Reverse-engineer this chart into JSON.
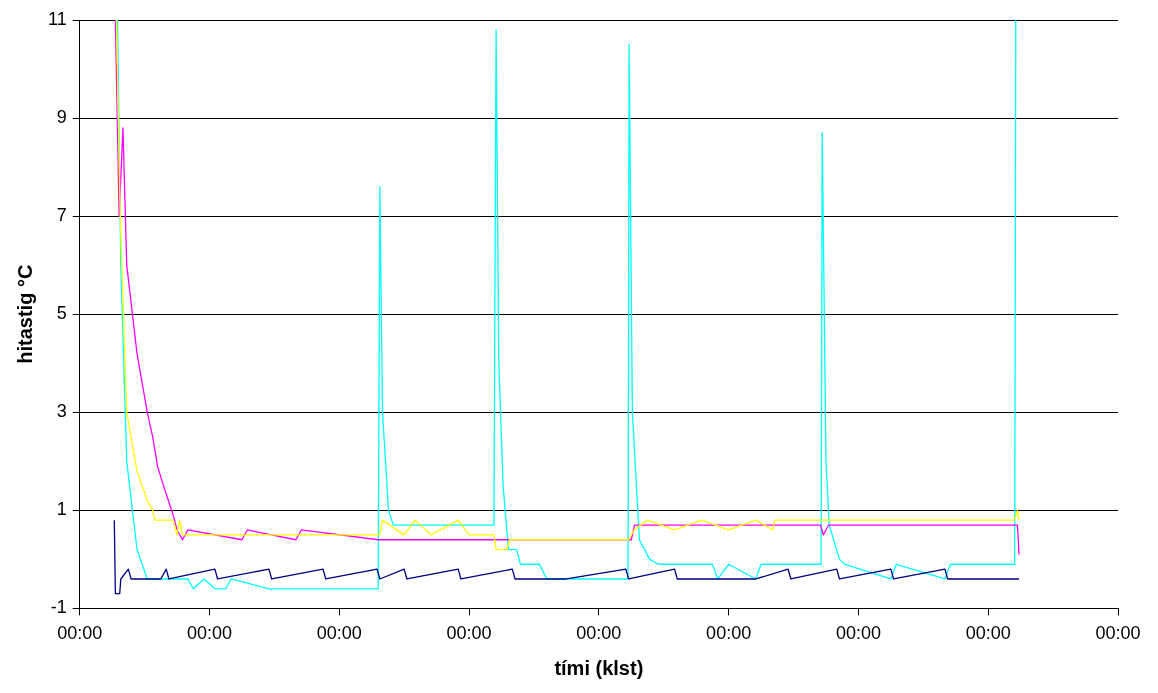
{
  "chart_data": {
    "type": "line",
    "xlabel": "tími (klst)",
    "ylabel": "hitastig °C",
    "xlim": [
      "--01-01T00:00",
      "--01-09T00:00"
    ],
    "xticks": [
      {
        "value": "--01-01T00:00",
        "label": "00:00"
      },
      {
        "value": "--01-02T00:00",
        "label": "00:00"
      },
      {
        "value": "--01-03T00:00",
        "label": "00:00"
      },
      {
        "value": "--01-04T00:00",
        "label": "00:00"
      },
      {
        "value": "--01-05T00:00",
        "label": "00:00"
      },
      {
        "value": "--01-06T00:00",
        "label": "00:00"
      },
      {
        "value": "--01-07T00:00",
        "label": "00:00"
      },
      {
        "value": "--01-08T00:00",
        "label": "00:00"
      },
      {
        "value": "--01-09T00:00",
        "label": "00:00"
      }
    ],
    "ylim": [
      -1,
      11
    ],
    "yticks": [
      -1,
      1,
      3,
      5,
      7,
      9,
      11
    ],
    "grid": "y",
    "legend": false,
    "marker": "none",
    "line_style": "solid",
    "series": [
      {
        "color": "#000080",
        "x": [
          "--01-01T06:24",
          "--01-01T06:36",
          "--01-01T07:24",
          "--01-01T07:36",
          "--01-01T09:00",
          "--01-01T09:30",
          "--01-01T15:00",
          "--01-01T16:00",
          "--01-01T16:30",
          "--01-02T01:00",
          "--01-02T01:30",
          "--01-02T11:00",
          "--01-02T11:30",
          "--01-02T21:00",
          "--01-02T21:30",
          "--01-03T07:00",
          "--01-03T07:30",
          "--01-03T12:00",
          "--01-03T12:30",
          "--01-03T22:00",
          "--01-03T22:30",
          "--01-04T08:00",
          "--01-04T08:30",
          "--01-04T18:00",
          "--01-05T05:00",
          "--01-05T05:30",
          "--01-05T14:00",
          "--01-05T14:30",
          "--01-06T05:00",
          "--01-06T11:00",
          "--01-06T11:30",
          "--01-06T20:00",
          "--01-06T20:30",
          "--01-07T06:00",
          "--01-07T06:30",
          "--01-07T16:00",
          "--01-07T16:30",
          "--01-08T05:42"
        ],
        "values": [
          0.8,
          -0.7,
          -0.7,
          -0.4,
          -0.2,
          -0.4,
          -0.4,
          -0.2,
          -0.4,
          -0.2,
          -0.4,
          -0.2,
          -0.4,
          -0.2,
          -0.4,
          -0.2,
          -0.4,
          -0.2,
          -0.4,
          -0.2,
          -0.4,
          -0.2,
          -0.4,
          -0.4,
          -0.2,
          -0.4,
          -0.2,
          -0.4,
          -0.4,
          -0.2,
          -0.4,
          -0.2,
          -0.4,
          -0.2,
          -0.4,
          -0.2,
          -0.4,
          -0.4
        ]
      },
      {
        "color": "#ffff00",
        "x": [
          "--01-01T06:48",
          "--01-01T07:30",
          "--01-01T08:42",
          "--01-01T10:36",
          "--01-01T12:30",
          "--01-01T13:30",
          "--01-01T13:54",
          "--01-01T17:18",
          "--01-01T18:00",
          "--01-01T18:30",
          "--01-01T19:00",
          "--01-01T20:00",
          "--01-03T07:30",
          "--01-03T08:00",
          "--01-03T12:00",
          "--01-03T14:00",
          "--01-03T17:00",
          "--01-03T22:00",
          "--01-04T00:00",
          "--01-04T04:36",
          "--01-04T05:00",
          "--01-04T07:00",
          "--01-04T07:30",
          "--01-05T05:30",
          "--01-05T06:30",
          "--01-05T09:00",
          "--01-05T14:00",
          "--01-05T19:00",
          "--01-06T00:00",
          "--01-06T05:00",
          "--01-06T08:12",
          "--01-06T08:30",
          "--01-08T04:54",
          "--01-08T05:24",
          "--01-08T05:42"
        ],
        "values": [
          11,
          7,
          3,
          1.8,
          1.2,
          1,
          0.8,
          0.8,
          0.5,
          0.8,
          0.5,
          0.5,
          0.5,
          0.8,
          0.5,
          0.8,
          0.5,
          0.8,
          0.5,
          0.5,
          0.2,
          0.2,
          0.4,
          0.4,
          0.6,
          0.8,
          0.6,
          0.8,
          0.6,
          0.8,
          0.6,
          0.8,
          0.8,
          1,
          0.8
        ]
      },
      {
        "color": "#ff00ff",
        "x": [
          "--01-01T06:36",
          "--01-01T07:18",
          "--01-01T08:00",
          "--01-01T08:42",
          "--01-01T10:36",
          "--01-01T12:30",
          "--01-01T13:30",
          "--01-01T14:24",
          "--01-01T15:30",
          "--01-01T17:18",
          "--01-01T18:00",
          "--01-01T19:00",
          "--01-01T20:00",
          "--01-02T06:00",
          "--01-02T07:00",
          "--01-02T16:00",
          "--01-02T17:00",
          "--01-03T07:12",
          "--01-05T06:00",
          "--01-05T06:36",
          "--01-06T17:00",
          "--01-06T17:30",
          "--01-06T18:30",
          "--01-08T05:24",
          "--01-08T05:42"
        ],
        "values": [
          11,
          7,
          8.8,
          6,
          4.2,
          3,
          2.5,
          1.9,
          1.5,
          0.9,
          0.6,
          0.4,
          0.6,
          0.4,
          0.6,
          0.4,
          0.6,
          0.4,
          0.4,
          0.7,
          0.7,
          0.5,
          0.7,
          0.7,
          0.1
        ]
      },
      {
        "color": "#00ffff",
        "x": [
          "--01-01T07:00",
          "--01-01T07:36",
          "--01-01T08:42",
          "--01-01T10:36",
          "--01-01T12:30",
          "--01-01T20:00",
          "--01-01T21:00",
          "--01-01T23:00",
          "--01-02T01:00",
          "--01-02T03:00",
          "--01-02T04:00",
          "--01-02T11:00",
          "--01-03T07:12",
          "--01-03T07:30",
          "--01-03T08:00",
          "--01-03T09:06",
          "--01-03T10:00",
          "--01-04T04:36",
          "--01-04T05:00",
          "--01-04T05:30",
          "--01-04T06:18",
          "--01-04T06:54",
          "--01-04T07:18",
          "--01-04T08:48",
          "--01-04T09:30",
          "--01-04T13:00",
          "--01-04T14:24",
          "--01-05T05:24",
          "--01-05T05:36",
          "--01-05T06:12",
          "--01-05T07:30",
          "--01-05T09:24",
          "--01-05T11:00",
          "--01-05T21:00",
          "--01-05T22:00",
          "--01-06T00:00",
          "--01-06T05:00",
          "--01-06T06:00",
          "--01-06T17:06",
          "--01-06T17:18",
          "--01-06T18:00",
          "--01-06T18:36",
          "--01-06T20:30",
          "--01-06T21:30",
          "--01-07T06:00",
          "--01-07T07:00",
          "--01-07T16:00",
          "--01-07T17:00",
          "--01-08T04:54",
          "--01-08T05:06"
        ],
        "values": [
          11,
          6,
          2,
          0.2,
          -0.4,
          -0.4,
          -0.6,
          -0.4,
          -0.6,
          -0.6,
          -0.4,
          -0.6,
          -0.6,
          7.6,
          3,
          1,
          0.7,
          0.7,
          10.8,
          4,
          1.5,
          0.7,
          0.2,
          0.2,
          -0.1,
          -0.1,
          -0.4,
          -0.4,
          10.5,
          3,
          0.4,
          0,
          -0.1,
          -0.1,
          -0.4,
          -0.1,
          -0.4,
          -0.1,
          -0.1,
          8.7,
          2,
          0.7,
          0,
          -0.1,
          -0.4,
          -0.1,
          -0.4,
          -0.1,
          -0.1,
          11
        ]
      }
    ]
  }
}
